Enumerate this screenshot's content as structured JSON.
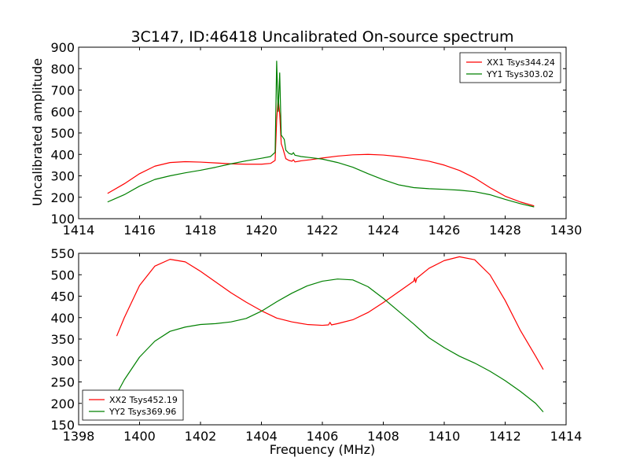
{
  "colors": {
    "xx": "#ff0000",
    "yy": "#008000"
  },
  "chart_data": [
    {
      "type": "line",
      "title": "3C147, ID:46418 Uncalibrated On-source spectrum",
      "xlabel": "",
      "ylabel": "Uncalibrated amplitude",
      "xlim": [
        1414,
        1430
      ],
      "ylim": [
        100,
        900
      ],
      "xticks": [
        1414,
        1416,
        1418,
        1420,
        1422,
        1424,
        1426,
        1428,
        1430
      ],
      "yticks": [
        100,
        200,
        300,
        400,
        500,
        600,
        700,
        800,
        900
      ],
      "legend_position": "top-right",
      "series": [
        {
          "name": "XX1 Tsys344.24",
          "color": "#ff0000",
          "x": [
            1414.95,
            1415.5,
            1416.0,
            1416.5,
            1417.0,
            1417.5,
            1418.0,
            1418.5,
            1419.0,
            1419.5,
            1420.0,
            1420.3,
            1420.45,
            1420.5,
            1420.55,
            1420.6,
            1420.65,
            1420.7,
            1420.8,
            1420.9,
            1421.0,
            1421.05,
            1421.1,
            1421.3,
            1421.6,
            1422.0,
            1422.5,
            1423.0,
            1423.5,
            1424.0,
            1424.5,
            1425.0,
            1425.5,
            1426.0,
            1426.5,
            1427.0,
            1427.5,
            1428.0,
            1428.5,
            1428.95
          ],
          "y": [
            218,
            263,
            310,
            345,
            362,
            366,
            364,
            360,
            356,
            354,
            354,
            358,
            372,
            560,
            660,
            590,
            450,
            430,
            380,
            372,
            368,
            375,
            365,
            370,
            375,
            383,
            392,
            398,
            400,
            397,
            390,
            380,
            368,
            350,
            325,
            290,
            245,
            205,
            178,
            160
          ]
        },
        {
          "name": "YY1 Tsys303.02",
          "color": "#008000",
          "x": [
            1414.95,
            1415.5,
            1416.0,
            1416.5,
            1417.0,
            1417.5,
            1418.0,
            1418.5,
            1419.0,
            1419.5,
            1420.0,
            1420.3,
            1420.45,
            1420.5,
            1420.55,
            1420.6,
            1420.65,
            1420.7,
            1420.75,
            1420.8,
            1420.9,
            1421.0,
            1421.05,
            1421.1,
            1421.3,
            1421.6,
            1422.0,
            1422.5,
            1423.0,
            1423.5,
            1424.0,
            1424.5,
            1425.0,
            1425.5,
            1426.0,
            1426.5,
            1427.0,
            1427.5,
            1428.0,
            1428.5,
            1428.95
          ],
          "y": [
            178,
            212,
            252,
            283,
            300,
            314,
            326,
            340,
            356,
            370,
            382,
            390,
            410,
            835,
            600,
            780,
            490,
            480,
            470,
            420,
            405,
            400,
            408,
            396,
            390,
            385,
            378,
            362,
            340,
            310,
            282,
            258,
            245,
            240,
            237,
            233,
            226,
            212,
            190,
            170,
            155
          ]
        }
      ]
    },
    {
      "type": "line",
      "title": "",
      "xlabel": "Frequency (MHz)",
      "ylabel": "",
      "xlim": [
        1398,
        1414
      ],
      "ylim": [
        150,
        550
      ],
      "xticks": [
        1398,
        1400,
        1402,
        1404,
        1406,
        1408,
        1410,
        1412,
        1414
      ],
      "yticks": [
        150,
        200,
        250,
        300,
        350,
        400,
        450,
        500,
        550
      ],
      "legend_position": "bottom-left",
      "series": [
        {
          "name": "XX2 Tsys452.19",
          "color": "#ff0000",
          "x": [
            1399.25,
            1399.5,
            1400.0,
            1400.5,
            1401.0,
            1401.5,
            1402.0,
            1402.5,
            1403.0,
            1403.5,
            1404.0,
            1404.5,
            1405.0,
            1405.5,
            1406.0,
            1406.2,
            1406.25,
            1406.3,
            1406.5,
            1407.0,
            1407.5,
            1408.0,
            1408.5,
            1409.0,
            1409.03,
            1409.06,
            1409.1,
            1409.5,
            1410.0,
            1410.5,
            1411.0,
            1411.5,
            1412.0,
            1412.5,
            1413.0,
            1413.25
          ],
          "y": [
            357,
            400,
            475,
            520,
            536,
            530,
            508,
            483,
            458,
            436,
            416,
            399,
            390,
            384,
            382,
            383,
            389,
            383,
            386,
            395,
            412,
            435,
            460,
            485,
            493,
            482,
            492,
            515,
            533,
            542,
            535,
            500,
            440,
            370,
            310,
            279
          ]
        },
        {
          "name": "YY2 Tsys369.96",
          "color": "#008000",
          "x": [
            1399.25,
            1399.5,
            1400.0,
            1400.5,
            1401.0,
            1401.5,
            1402.0,
            1402.5,
            1403.0,
            1403.5,
            1404.0,
            1404.5,
            1405.0,
            1405.5,
            1406.0,
            1406.5,
            1407.0,
            1407.5,
            1408.0,
            1408.5,
            1409.0,
            1409.5,
            1410.0,
            1410.5,
            1411.0,
            1411.5,
            1412.0,
            1412.5,
            1413.0,
            1413.25
          ],
          "y": [
            222,
            255,
            308,
            345,
            368,
            378,
            384,
            386,
            390,
            398,
            415,
            437,
            457,
            474,
            485,
            490,
            488,
            472,
            445,
            415,
            385,
            353,
            330,
            310,
            294,
            275,
            253,
            228,
            200,
            180
          ]
        }
      ]
    }
  ]
}
